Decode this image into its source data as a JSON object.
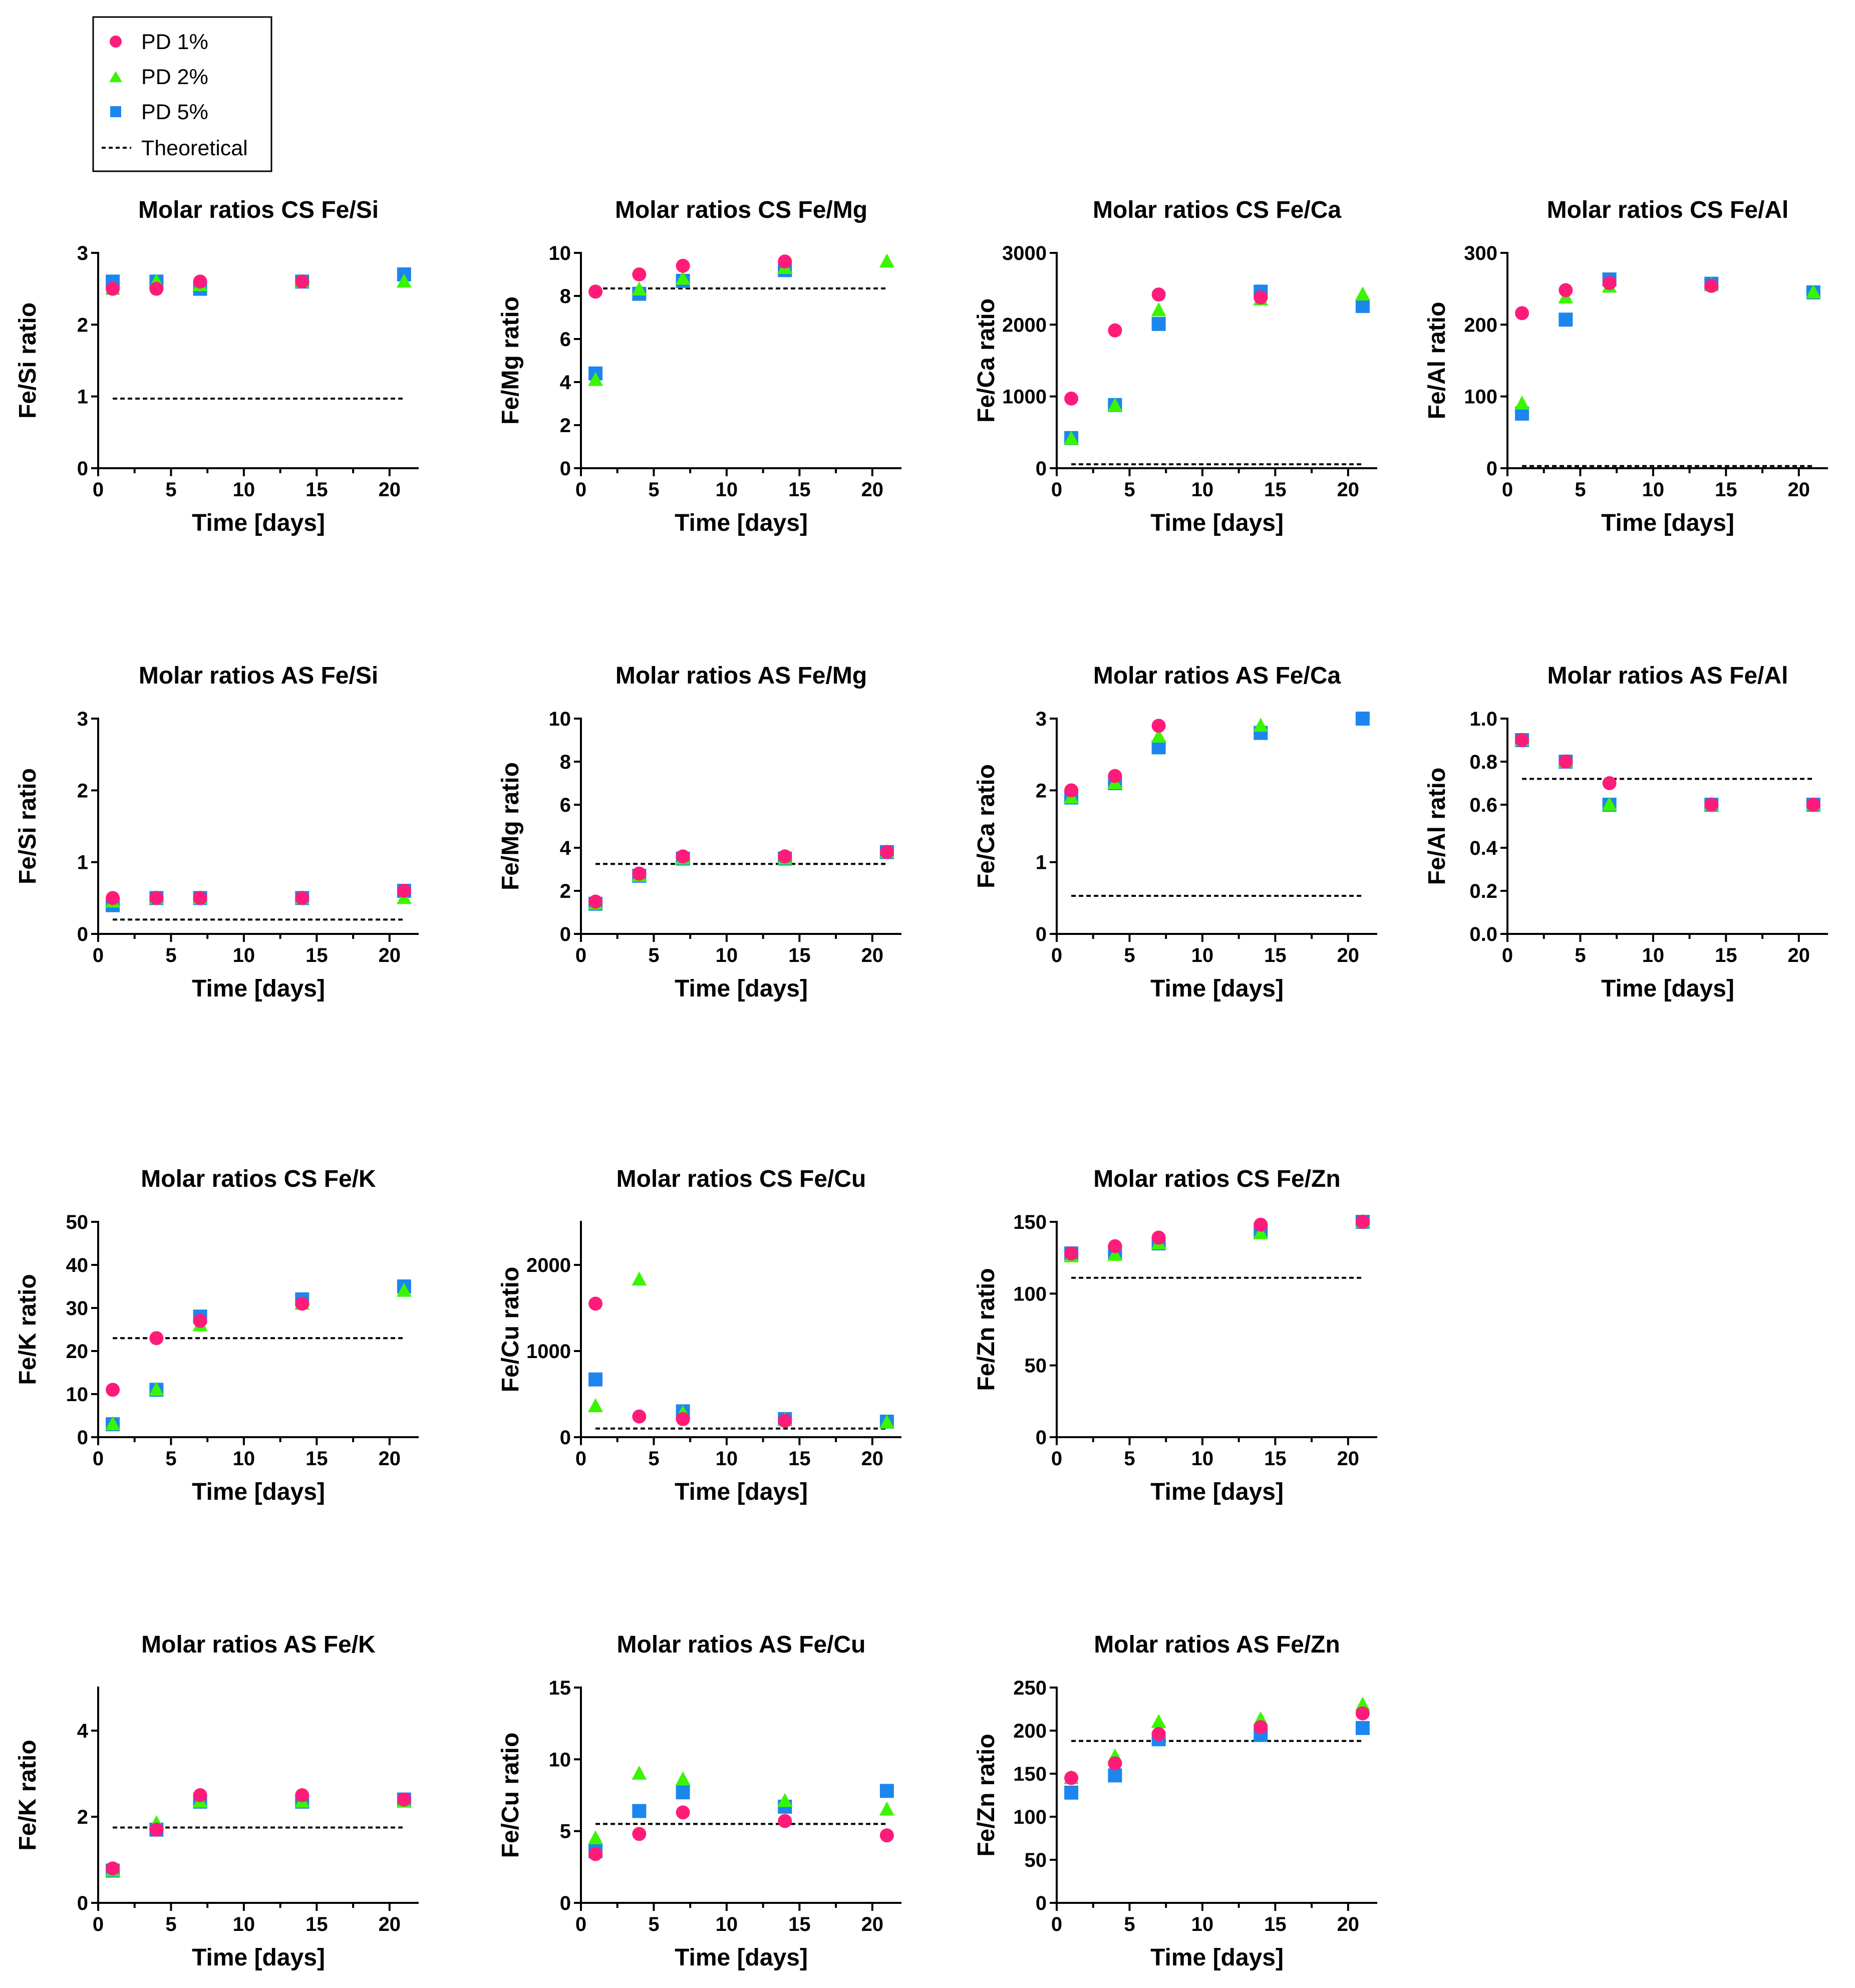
{
  "colors": {
    "pd1": "#ff1b7a",
    "pd2": "#3bf500",
    "pd5": "#1c86ee",
    "theoretical": "#000000"
  },
  "legend": {
    "entries": [
      {
        "label": "PD 1%",
        "marker": "circle",
        "color": "#ff1b7a"
      },
      {
        "label": "PD 2%",
        "marker": "triangle",
        "color": "#3bf500"
      },
      {
        "label": "PD 5%",
        "marker": "square",
        "color": "#1c86ee"
      },
      {
        "label": "Theoretical",
        "marker": "dashed-line",
        "color": "#000000"
      }
    ]
  },
  "chart_data": [
    {
      "type": "scatter",
      "title": "Molar ratios CS Fe/Si",
      "xlabel": "Time [days]",
      "ylabel": "Fe/Si ratio",
      "xlim": [
        0,
        22
      ],
      "ylim": [
        0,
        3
      ],
      "xticks": [
        0,
        5,
        10,
        15,
        20
      ],
      "yticks": [
        0,
        1,
        2,
        3
      ],
      "x": [
        1,
        4,
        7,
        14,
        21
      ],
      "theoretical": 0.97,
      "series": [
        {
          "name": "PD 1%",
          "values": [
            2.5,
            2.5,
            2.6,
            2.6,
            null
          ]
        },
        {
          "name": "PD 2%",
          "values": [
            2.5,
            2.6,
            2.55,
            2.6,
            2.6
          ]
        },
        {
          "name": "PD 5%",
          "values": [
            2.6,
            2.6,
            2.5,
            2.6,
            2.7
          ]
        }
      ]
    },
    {
      "type": "scatter",
      "title": "Molar ratios CS Fe/Mg",
      "xlabel": "Time [days]",
      "ylabel": "Fe/Mg ratio",
      "xlim": [
        0,
        22
      ],
      "ylim": [
        0,
        10
      ],
      "xticks": [
        0,
        5,
        10,
        15,
        20
      ],
      "yticks": [
        0,
        2,
        4,
        6,
        8,
        10
      ],
      "x": [
        1,
        4,
        7,
        14,
        21
      ],
      "theoretical": 8.35,
      "series": [
        {
          "name": "PD 1%",
          "values": [
            8.2,
            9.0,
            9.4,
            9.6,
            null
          ]
        },
        {
          "name": "PD 2%",
          "values": [
            4.1,
            8.3,
            8.8,
            9.3,
            9.6
          ]
        },
        {
          "name": "PD 5%",
          "values": [
            4.4,
            8.1,
            8.7,
            9.2,
            null
          ]
        }
      ]
    },
    {
      "type": "scatter",
      "title": "Molar ratios CS Fe/Ca",
      "xlabel": "Time [days]",
      "ylabel": "Fe/Ca ratio",
      "xlim": [
        0,
        22
      ],
      "ylim": [
        0,
        3000
      ],
      "xticks": [
        0,
        5,
        10,
        15,
        20
      ],
      "yticks": [
        0,
        1000,
        2000,
        3000
      ],
      "x": [
        1,
        4,
        7,
        14,
        21
      ],
      "theoretical": 55,
      "series": [
        {
          "name": "PD 1%",
          "values": [
            970,
            1920,
            2420,
            2380,
            null
          ]
        },
        {
          "name": "PD 2%",
          "values": [
            410,
            870,
            2200,
            2350,
            2420
          ]
        },
        {
          "name": "PD 5%",
          "values": [
            420,
            880,
            2010,
            2460,
            2260
          ]
        }
      ]
    },
    {
      "type": "scatter",
      "title": "Molar ratios CS Fe/Al",
      "xlabel": "Time [days]",
      "ylabel": "Fe/Al ratio",
      "xlim": [
        0,
        22
      ],
      "ylim": [
        0,
        300
      ],
      "xticks": [
        0,
        5,
        10,
        15,
        20
      ],
      "yticks": [
        0,
        100,
        200,
        300
      ],
      "x": [
        1,
        4,
        7,
        14,
        21
      ],
      "theoretical": 3,
      "series": [
        {
          "name": "PD 1%",
          "values": [
            216,
            248,
            258,
            254,
            null
          ]
        },
        {
          "name": "PD 2%",
          "values": [
            90,
            238,
            253,
            255,
            245
          ]
        },
        {
          "name": "PD 5%",
          "values": [
            76,
            207,
            263,
            257,
            245
          ]
        }
      ]
    },
    {
      "type": "scatter",
      "title": "Molar ratios AS Fe/Si",
      "xlabel": "Time [days]",
      "ylabel": "Fe/Si ratio",
      "xlim": [
        0,
        22
      ],
      "ylim": [
        0,
        3
      ],
      "xticks": [
        0,
        5,
        10,
        15,
        20
      ],
      "yticks": [
        0,
        1,
        2,
        3
      ],
      "x": [
        1,
        4,
        7,
        14,
        21
      ],
      "theoretical": 0.2,
      "series": [
        {
          "name": "PD 1%",
          "values": [
            0.5,
            0.5,
            0.5,
            0.5,
            0.6
          ]
        },
        {
          "name": "PD 2%",
          "values": [
            0.45,
            0.5,
            0.5,
            0.5,
            0.5
          ]
        },
        {
          "name": "PD 5%",
          "values": [
            0.4,
            0.5,
            0.5,
            0.5,
            0.6
          ]
        }
      ]
    },
    {
      "type": "scatter",
      "title": "Molar ratios AS Fe/Mg",
      "xlabel": "Time [days]",
      "ylabel": "Fe/Mg ratio",
      "xlim": [
        0,
        22
      ],
      "ylim": [
        0,
        10
      ],
      "xticks": [
        0,
        5,
        10,
        15,
        20
      ],
      "yticks": [
        0,
        2,
        4,
        6,
        8,
        10
      ],
      "x": [
        1,
        4,
        7,
        14,
        21
      ],
      "theoretical": 3.25,
      "series": [
        {
          "name": "PD 1%",
          "values": [
            1.5,
            2.8,
            3.6,
            3.6,
            3.8
          ]
        },
        {
          "name": "PD 2%",
          "values": [
            1.4,
            2.7,
            3.5,
            3.5,
            3.8
          ]
        },
        {
          "name": "PD 5%",
          "values": [
            1.4,
            2.7,
            3.5,
            3.5,
            3.8
          ]
        }
      ]
    },
    {
      "type": "scatter",
      "title": "Molar ratios AS Fe/Ca",
      "xlabel": "Time [days]",
      "ylabel": "Fe/Ca ratio",
      "xlim": [
        0,
        22
      ],
      "ylim": [
        0,
        3
      ],
      "xticks": [
        0,
        5,
        10,
        15,
        20
      ],
      "yticks": [
        0,
        1,
        2,
        3
      ],
      "x": [
        1,
        4,
        7,
        14,
        21
      ],
      "theoretical": 0.53,
      "series": [
        {
          "name": "PD 1%",
          "values": [
            2.0,
            2.2,
            2.9,
            null,
            null
          ]
        },
        {
          "name": "PD 2%",
          "values": [
            1.9,
            2.1,
            2.75,
            2.9,
            null
          ]
        },
        {
          "name": "PD 5%",
          "values": [
            1.9,
            2.1,
            2.6,
            2.8,
            3.0
          ]
        }
      ]
    },
    {
      "type": "scatter",
      "title": "Molar ratios AS Fe/Al",
      "xlabel": "Time [days]",
      "ylabel": "Fe/Al ratio",
      "xlim": [
        0,
        22
      ],
      "ylim": [
        0,
        1
      ],
      "xticks": [
        0,
        5,
        10,
        15,
        20
      ],
      "yticks": [
        0.0,
        0.2,
        0.4,
        0.6,
        0.8,
        1.0
      ],
      "ydecimals": 1,
      "x": [
        1,
        4,
        7,
        14,
        21
      ],
      "theoretical": 0.72,
      "series": [
        {
          "name": "PD 1%",
          "values": [
            0.9,
            0.8,
            0.7,
            0.6,
            0.6
          ]
        },
        {
          "name": "PD 2%",
          "values": [
            0.9,
            0.8,
            0.6,
            0.6,
            0.6
          ]
        },
        {
          "name": "PD 5%",
          "values": [
            0.9,
            0.8,
            0.6,
            0.6,
            0.6
          ]
        }
      ]
    },
    {
      "type": "scatter",
      "title": "Molar ratios CS Fe/K",
      "xlabel": "Time [days]",
      "ylabel": "Fe/K ratio",
      "xlim": [
        0,
        22
      ],
      "ylim": [
        0,
        50
      ],
      "xticks": [
        0,
        5,
        10,
        15,
        20
      ],
      "yticks": [
        0,
        10,
        20,
        30,
        40,
        50
      ],
      "x": [
        1,
        4,
        7,
        14,
        21
      ],
      "theoretical": 23,
      "series": [
        {
          "name": "PD 1%",
          "values": [
            11,
            23,
            27,
            31,
            null
          ]
        },
        {
          "name": "PD 2%",
          "values": [
            3,
            11,
            26,
            31,
            34
          ]
        },
        {
          "name": "PD 5%",
          "values": [
            3,
            11,
            28,
            32,
            35
          ]
        }
      ]
    },
    {
      "type": "scatter",
      "title": "Molar ratios CS Fe/Cu",
      "xlabel": "Time [days]",
      "ylabel": "Fe/Cu ratio",
      "xlim": [
        0,
        22
      ],
      "ylim": [
        0,
        2500
      ],
      "xticks": [
        0,
        5,
        10,
        15,
        20
      ],
      "yticks": [
        0,
        1000,
        2000
      ],
      "x": [
        1,
        4,
        7,
        14,
        21
      ],
      "theoretical": 100,
      "series": [
        {
          "name": "PD 1%",
          "values": [
            1550,
            240,
            210,
            190,
            null
          ]
        },
        {
          "name": "PD 2%",
          "values": [
            360,
            1830,
            280,
            200,
            170
          ]
        },
        {
          "name": "PD 5%",
          "values": [
            670,
            null,
            300,
            210,
            180
          ]
        }
      ]
    },
    {
      "type": "scatter",
      "title": "Molar ratios CS Fe/Zn",
      "xlabel": "Time [days]",
      "ylabel": "Fe/Zn ratio",
      "xlim": [
        0,
        22
      ],
      "ylim": [
        0,
        150
      ],
      "xticks": [
        0,
        5,
        10,
        15,
        20
      ],
      "yticks": [
        0,
        50,
        100,
        150
      ],
      "x": [
        1,
        4,
        7,
        14,
        21
      ],
      "theoretical": 111,
      "series": [
        {
          "name": "PD 1%",
          "values": [
            128,
            133,
            139,
            148,
            150
          ]
        },
        {
          "name": "PD 2%",
          "values": [
            126,
            127,
            135,
            142,
            150
          ]
        },
        {
          "name": "PD 5%",
          "values": [
            128,
            129,
            135,
            144,
            150
          ]
        }
      ]
    },
    {
      "type": "scatter",
      "title": "Molar ratios AS Fe/K",
      "xlabel": "Time [days]",
      "ylabel": "Fe/K ratio",
      "xlim": [
        0,
        22
      ],
      "ylim": [
        0,
        5
      ],
      "xticks": [
        0,
        5,
        10,
        15,
        20
      ],
      "yticks": [
        0,
        2,
        4
      ],
      "x": [
        1,
        4,
        7,
        14,
        21
      ],
      "theoretical": 1.75,
      "series": [
        {
          "name": "PD 1%",
          "values": [
            0.8,
            1.7,
            2.5,
            2.5,
            2.4
          ]
        },
        {
          "name": "PD 2%",
          "values": [
            0.75,
            1.85,
            2.35,
            2.35,
            2.35
          ]
        },
        {
          "name": "PD 5%",
          "values": [
            0.75,
            1.7,
            2.35,
            2.35,
            2.4
          ]
        }
      ]
    },
    {
      "type": "scatter",
      "title": "Molar ratios AS Fe/Cu",
      "xlabel": "Time [days]",
      "ylabel": "Fe/Cu ratio",
      "xlim": [
        0,
        22
      ],
      "ylim": [
        0,
        15
      ],
      "xticks": [
        0,
        5,
        10,
        15,
        20
      ],
      "yticks": [
        0,
        5,
        10,
        15
      ],
      "x": [
        1,
        4,
        7,
        14,
        21
      ],
      "theoretical": 5.5,
      "series": [
        {
          "name": "PD 1%",
          "values": [
            3.4,
            4.8,
            6.3,
            5.7,
            4.7
          ]
        },
        {
          "name": "PD 2%",
          "values": [
            4.5,
            9.0,
            8.6,
            7.1,
            6.5
          ]
        },
        {
          "name": "PD 5%",
          "values": [
            3.6,
            6.4,
            7.7,
            6.7,
            7.8
          ]
        }
      ]
    },
    {
      "type": "scatter",
      "title": "Molar ratios AS Fe/Zn",
      "xlabel": "Time [days]",
      "ylabel": "Fe/Zn ratio",
      "xlim": [
        0,
        22
      ],
      "ylim": [
        0,
        250
      ],
      "xticks": [
        0,
        5,
        10,
        15,
        20
      ],
      "yticks": [
        0,
        50,
        100,
        150,
        200,
        250
      ],
      "x": [
        1,
        4,
        7,
        14,
        21
      ],
      "theoretical": 188,
      "series": [
        {
          "name": "PD 1%",
          "values": [
            145,
            162,
            196,
            204,
            220
          ]
        },
        {
          "name": "PD 2%",
          "values": [
            145,
            170,
            210,
            213,
            230
          ]
        },
        {
          "name": "PD 5%",
          "values": [
            128,
            148,
            190,
            195,
            203
          ]
        }
      ]
    }
  ]
}
